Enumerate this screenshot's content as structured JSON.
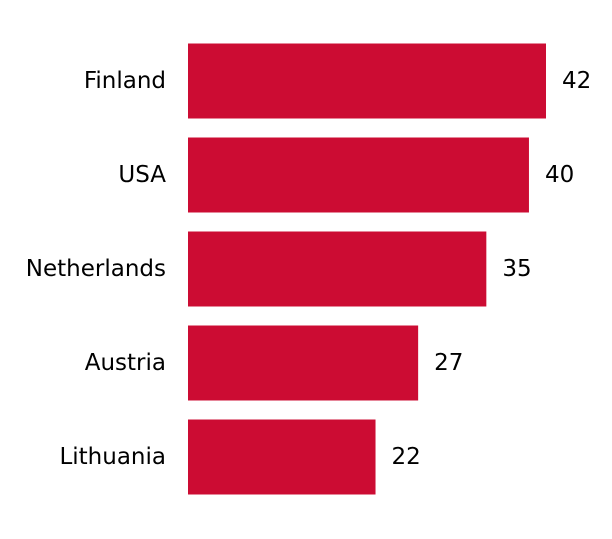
{
  "chart_data": {
    "type": "bar",
    "orientation": "horizontal",
    "categories": [
      "Finland",
      "USA",
      "Netherlands",
      "Austria",
      "Lithuania"
    ],
    "values": [
      42,
      40,
      35,
      27,
      22
    ],
    "xlim": [
      0,
      42
    ],
    "grid": false,
    "legend": "none",
    "bar_color": "#cc0c33"
  }
}
